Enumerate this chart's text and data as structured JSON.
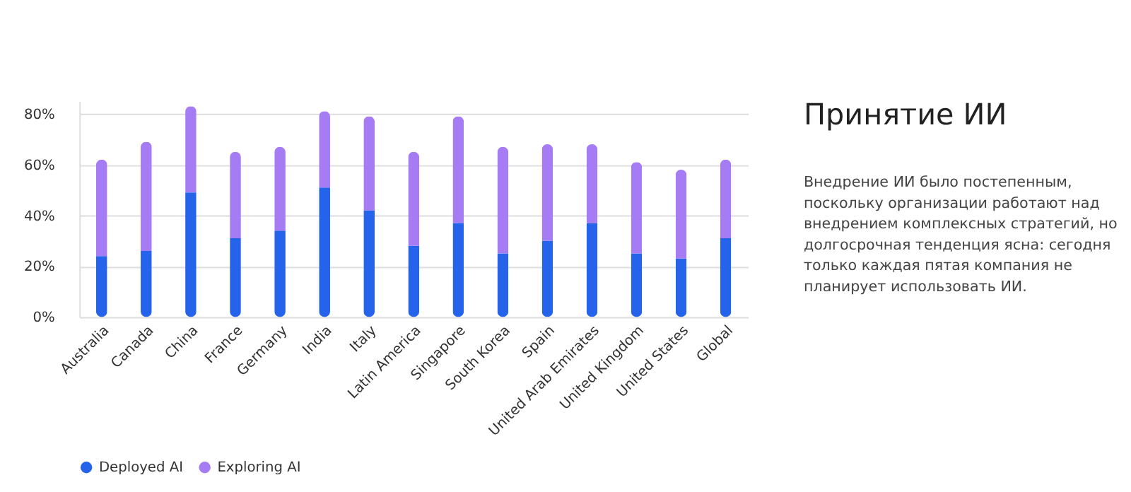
{
  "chart_data": {
    "type": "bar",
    "stacked": true,
    "title": "Принятие ИИ",
    "subtitle": "Внедрение ИИ было постепенным, поскольку организации работают над внедрением комплексных стратегий, но долгосрочная тенденция ясна: сегодня только каждая пятая компания не планирует использовать ИИ.",
    "categories": [
      "Australia",
      "Canada",
      "China",
      "France",
      "Germany",
      "India",
      "Italy",
      "Latin America",
      "Singapore",
      "South Korea",
      "Spain",
      "United Arab Emirates",
      "United Kingdom",
      "United States",
      "Global"
    ],
    "series": [
      {
        "name": "Deployed AI",
        "color": "#2563eb",
        "values": [
          24,
          26,
          49,
          31,
          34,
          51,
          42,
          28,
          37,
          25,
          30,
          37,
          25,
          23,
          31
        ]
      },
      {
        "name": "Exploring AI",
        "color": "#a57cf3",
        "values": [
          38,
          43,
          34,
          34,
          33,
          30,
          37,
          37,
          42,
          42,
          38,
          31,
          36,
          35,
          31
        ]
      }
    ],
    "ylim": [
      0,
      85
    ],
    "yticks": [
      {
        "value": 0,
        "label": "0%"
      },
      {
        "value": 20,
        "label": "20%"
      },
      {
        "value": 40,
        "label": "40%"
      },
      {
        "value": 60,
        "label": "60%"
      },
      {
        "value": 80,
        "label": "80%"
      }
    ],
    "grid": "y",
    "legend": "bottom left"
  }
}
